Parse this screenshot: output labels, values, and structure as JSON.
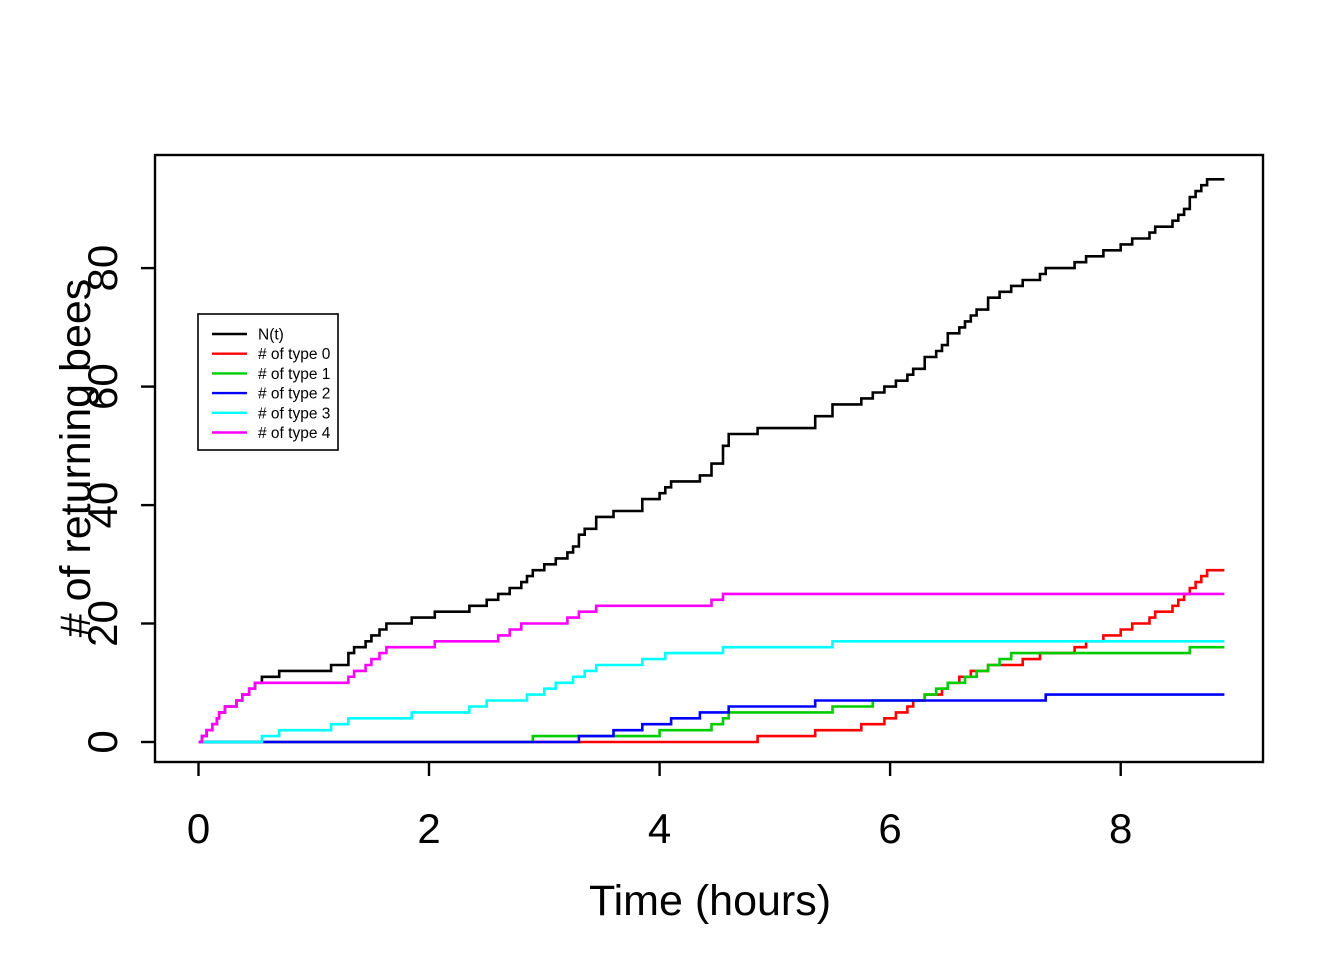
{
  "figure": {
    "background": "#ffffff",
    "kind": "R-style cumulative step plot"
  },
  "chart_data": {
    "type": "line",
    "subtype": "step",
    "title": "",
    "xlabel": "Time (hours)",
    "ylabel": "# of returning bees",
    "x_ticks": [
      0,
      2,
      4,
      6,
      8
    ],
    "y_ticks": [
      0,
      20,
      40,
      60,
      80
    ],
    "xlim": [
      0,
      9.25
    ],
    "ylim": [
      0,
      97
    ],
    "grid": false,
    "legend_position": "inside-upper-left",
    "t_start": 0,
    "t_end": 8.9,
    "series": [
      {
        "name": "N(t)",
        "color": "#000000",
        "derived": "merge-of-all-types",
        "final_value": 95,
        "events": []
      },
      {
        "name": "# of type 0",
        "color": "#FF0000",
        "final_value": 29,
        "events": [
          4.85,
          5.35,
          5.75,
          5.95,
          6.05,
          6.15,
          6.2,
          6.3,
          6.45,
          6.5,
          6.6,
          6.7,
          6.85,
          7.15,
          7.3,
          7.6,
          7.7,
          7.85,
          8.0,
          8.1,
          8.25,
          8.3,
          8.45,
          8.5,
          8.55,
          8.6,
          8.65,
          8.7,
          8.75
        ]
      },
      {
        "name": "# of type 1",
        "color": "#00CD00",
        "final_value": 16,
        "events": [
          2.9,
          4.0,
          4.45,
          4.55,
          4.6,
          5.5,
          5.85,
          6.3,
          6.4,
          6.5,
          6.65,
          6.75,
          6.85,
          6.95,
          7.05,
          8.6
        ]
      },
      {
        "name": "# of type 2",
        "color": "#0000FF",
        "final_value": 8,
        "events": [
          3.3,
          3.6,
          3.85,
          4.1,
          4.35,
          4.6,
          5.35,
          7.35
        ]
      },
      {
        "name": "# of type 3",
        "color": "#00FFFF",
        "final_value": 17,
        "events": [
          0.55,
          0.7,
          1.15,
          1.3,
          1.85,
          2.35,
          2.5,
          2.85,
          3.0,
          3.1,
          3.25,
          3.35,
          3.45,
          3.85,
          4.05,
          4.55,
          5.5
        ]
      },
      {
        "name": "# of type 4",
        "color": "#FF00FF",
        "final_value": 25,
        "events": [
          0.03,
          0.07,
          0.12,
          0.16,
          0.18,
          0.23,
          0.33,
          0.38,
          0.44,
          0.49,
          1.3,
          1.35,
          1.45,
          1.5,
          1.57,
          1.63,
          2.05,
          2.6,
          2.7,
          2.8,
          3.2,
          3.3,
          3.45,
          4.45,
          4.55
        ]
      }
    ]
  }
}
